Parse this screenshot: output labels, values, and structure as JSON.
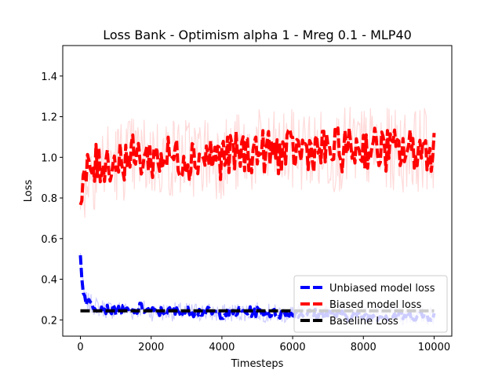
{
  "chart_data": {
    "type": "line",
    "title": "Loss Bank - Optimism alpha 1 - Mreg 0.1 - MLP40",
    "xlabel": "Timesteps",
    "ylabel": "Loss",
    "xlim": [
      -500,
      10500
    ],
    "ylim": [
      0.12,
      1.55
    ],
    "xticks": [
      0,
      2000,
      4000,
      6000,
      8000,
      10000
    ],
    "yticks": [
      0.2,
      0.4,
      0.6,
      0.8,
      1.0,
      1.2,
      1.4
    ],
    "xtick_labels": [
      "0",
      "2000",
      "4000",
      "6000",
      "8000",
      "10000"
    ],
    "ytick_labels": [
      "0.2",
      "0.4",
      "0.6",
      "0.8",
      "1.0",
      "1.2",
      "1.4"
    ],
    "grid": false,
    "legend_position": "lower-right",
    "series": [
      {
        "name": "Unbiased model loss",
        "color": "#0000ff",
        "band_color": "#c8c8ff",
        "style": "dashed",
        "x": [
          0,
          20,
          40,
          60,
          80,
          100,
          150,
          200,
          250,
          300,
          400,
          500,
          600,
          800,
          1000,
          1200,
          1500,
          1700,
          2000,
          2500,
          3000,
          3500,
          4000,
          4500,
          5000,
          5500,
          6000,
          6500,
          7000,
          7500,
          8000,
          8500,
          9000,
          9500,
          10000
        ],
        "values": [
          0.52,
          0.48,
          0.42,
          0.38,
          0.35,
          0.32,
          0.3,
          0.29,
          0.28,
          0.28,
          0.27,
          0.26,
          0.26,
          0.25,
          0.25,
          0.25,
          0.24,
          0.26,
          0.24,
          0.24,
          0.24,
          0.24,
          0.23,
          0.24,
          0.24,
          0.23,
          0.23,
          0.23,
          0.23,
          0.22,
          0.22,
          0.22,
          0.22,
          0.22,
          0.22
        ],
        "spread": 0.025
      },
      {
        "name": "Biased model loss",
        "color": "#ff0000",
        "band_color": "#ffd6d6",
        "style": "dashed",
        "x": [
          0,
          50,
          100,
          200,
          300,
          500,
          700,
          1000,
          1300,
          1500,
          2000,
          2500,
          3000,
          3500,
          4000,
          4500,
          5000,
          5500,
          6000,
          6500,
          7000,
          7500,
          8000,
          8500,
          9000,
          9500,
          10000
        ],
        "values": [
          0.75,
          0.82,
          0.88,
          0.92,
          0.94,
          0.96,
          0.98,
          0.98,
          1.0,
          1.0,
          1.0,
          1.0,
          1.0,
          1.01,
          1.0,
          1.02,
          1.03,
          1.02,
          1.03,
          1.04,
          1.03,
          1.04,
          1.05,
          1.04,
          1.03,
          1.04,
          1.04
        ],
        "spread": 0.11
      },
      {
        "name": "Baseline Loss",
        "color": "#000000",
        "style": "dashed",
        "x": [
          0,
          10000
        ],
        "values": [
          0.245,
          0.245
        ]
      }
    ]
  }
}
